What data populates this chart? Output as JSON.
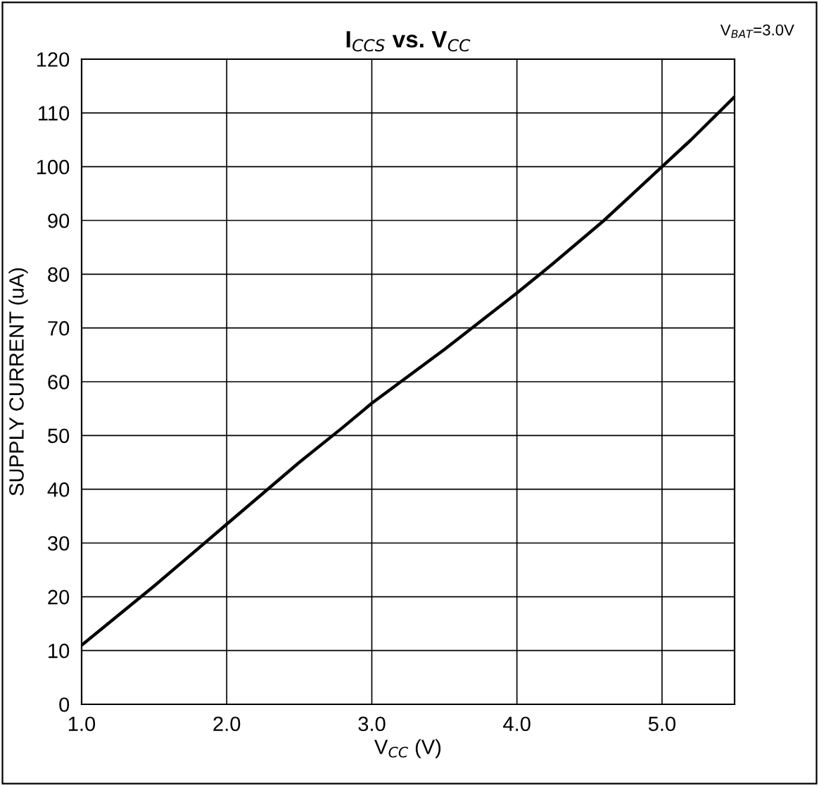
{
  "chart_data": {
    "type": "line",
    "title": "I$_{CCS}$ vs. V$_{CC}$",
    "xlabel": "V$_{CC}$ (V)",
    "ylabel": "SUPPLY CURRENT (uA)",
    "annotations": [
      "V$_{BAT}$=3.0V"
    ],
    "x": [
      1.0,
      1.5,
      2.0,
      2.5,
      2.8,
      3.0,
      3.5,
      4.0,
      4.25,
      4.6,
      4.8,
      5.0,
      5.2,
      5.5
    ],
    "series": [
      {
        "color": "#000000",
        "values": [
          11,
          22,
          33.5,
          45,
          51.5,
          56,
          66,
          76.5,
          82,
          90,
          95,
          100,
          105,
          113
        ]
      }
    ],
    "xlim": [
      1.0,
      5.5
    ],
    "ylim": [
      0,
      120
    ],
    "xticks": [
      {
        "value": 1,
        "label": "1.0"
      },
      {
        "value": 2,
        "label": "2.0"
      },
      {
        "value": 3,
        "label": "3.0"
      },
      {
        "value": 4,
        "label": "4.0"
      },
      {
        "value": 5,
        "label": "5.0"
      }
    ],
    "yticks": [
      0,
      10,
      20,
      30,
      40,
      50,
      60,
      70,
      80,
      90,
      100,
      110,
      120
    ],
    "grid": true,
    "line_style": "solid",
    "marker": "none"
  }
}
